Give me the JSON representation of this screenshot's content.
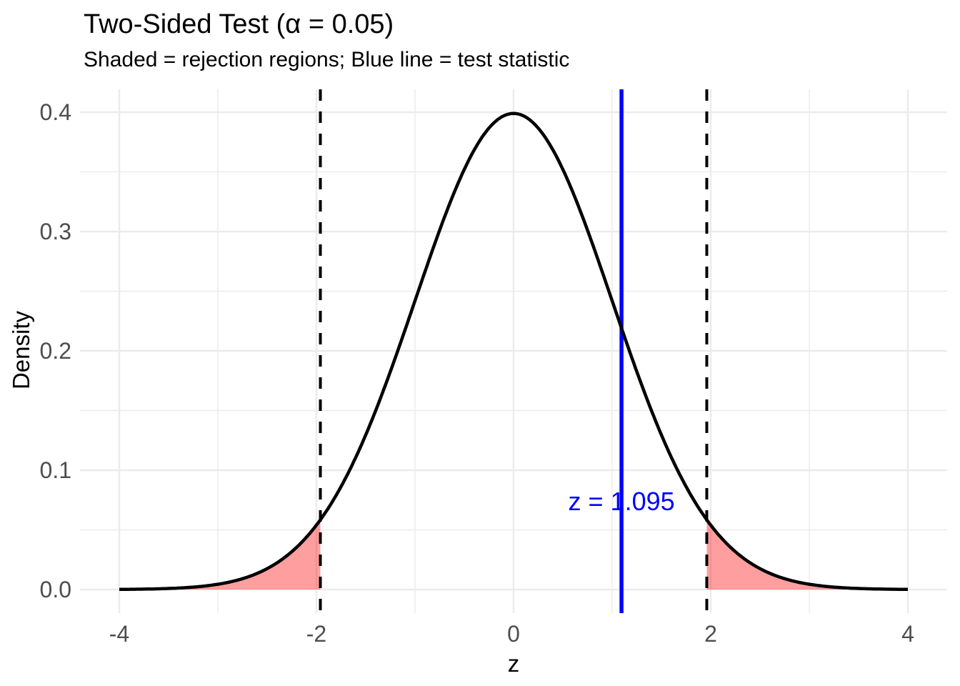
{
  "title": "Two-Sided Test (α = 0.05)",
  "subtitle": "Shaded = rejection regions; Blue line = test statistic",
  "chart_data": {
    "type": "area",
    "title": "Two-Sided Test (α = 0.05)",
    "subtitle": "Shaded = rejection regions; Blue line = test statistic",
    "xlabel": "z",
    "ylabel": "Density",
    "distribution": "standard normal",
    "curve": {
      "mean": 0,
      "sd": 1,
      "peak_density": 0.3989
    },
    "x_range": [
      -4,
      4
    ],
    "ylim": [
      0,
      0.4
    ],
    "alpha": 0.05,
    "critical_values": [
      -1.96,
      1.96
    ],
    "rejection_regions": [
      [
        -4,
        -1.96
      ],
      [
        1.96,
        4
      ]
    ],
    "test_statistic": 1.095,
    "test_statistic_label": "z = 1.095",
    "annotation_y_density": 0.082,
    "x_ticks": [
      -4,
      -2,
      0,
      2,
      4
    ],
    "x_tick_labels": [
      "-4",
      "-2",
      "0",
      "2",
      "4"
    ],
    "x_minor_ticks": [
      -3,
      -1,
      1,
      3
    ],
    "y_tick_values": [
      0,
      0.1,
      0.2,
      0.3,
      0.4
    ],
    "y_tick_labels": [
      "0.0",
      "0.1",
      "0.2",
      "0.3",
      "0.4"
    ],
    "y_minor_values": [
      0.05,
      0.15,
      0.25,
      0.35
    ],
    "grid": true,
    "legend_position": "none",
    "colors": {
      "curve": "#000000",
      "rejection_fill": "#FF0000",
      "rejection_fill_opacity": 0.38,
      "critical_line": "#000000",
      "test_stat_line": "#0000FF",
      "test_stat_text": "#0000FF",
      "gridline": "#EBEBEB",
      "tick_label": "#4D4D4D",
      "panel_background": "#FFFFFF"
    }
  }
}
